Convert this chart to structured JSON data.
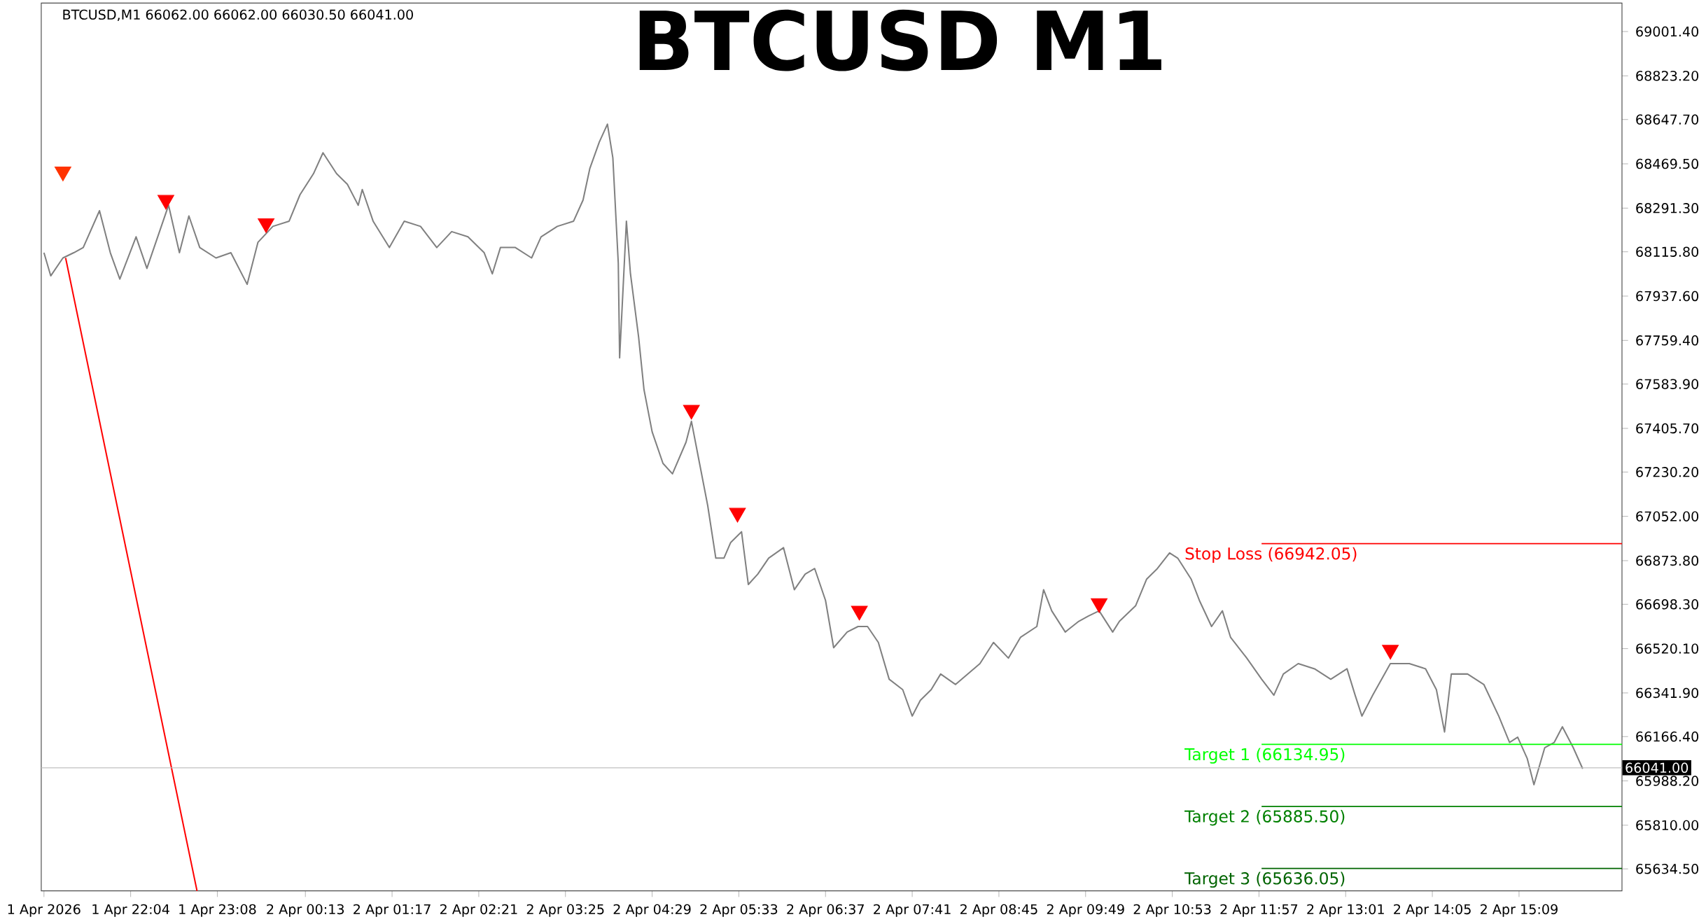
{
  "chart_data": {
    "type": "line",
    "title": "BTCUSD M1",
    "annotations": [
      "BTCUSD,M1  66062.00 66062.00 66030.50 66041.00"
    ],
    "xlim": [
      "2026-04-01T20:58",
      "2026-04-02T16:25"
    ],
    "ylim": [
      65546,
      69116
    ],
    "xticks": [
      {
        "value": "2026-04-01T21:00",
        "label": "1 Apr 2026"
      },
      {
        "value": "2026-04-01T22:04",
        "label": "1 Apr 22:04"
      },
      {
        "value": "2026-04-01T23:08",
        "label": "1 Apr 23:08"
      },
      {
        "value": "2026-04-02T00:13",
        "label": "2 Apr 00:13"
      },
      {
        "value": "2026-04-02T01:17",
        "label": "2 Apr 01:17"
      },
      {
        "value": "2026-04-02T02:21",
        "label": "2 Apr 02:21"
      },
      {
        "value": "2026-04-02T03:25",
        "label": "2 Apr 03:25"
      },
      {
        "value": "2026-04-02T04:29",
        "label": "2 Apr 04:29"
      },
      {
        "value": "2026-04-02T05:33",
        "label": "2 Apr 05:33"
      },
      {
        "value": "2026-04-02T06:37",
        "label": "2 Apr 06:37"
      },
      {
        "value": "2026-04-02T07:41",
        "label": "2 Apr 07:41"
      },
      {
        "value": "2026-04-02T08:45",
        "label": "2 Apr 08:45"
      },
      {
        "value": "2026-04-02T09:49",
        "label": "2 Apr 09:49"
      },
      {
        "value": "2026-04-02T10:53",
        "label": "2 Apr 10:53"
      },
      {
        "value": "2026-04-02T11:57",
        "label": "2 Apr 11:57"
      },
      {
        "value": "2026-04-02T13:01",
        "label": "2 Apr 13:01"
      },
      {
        "value": "2026-04-02T14:05",
        "label": "2 Apr 14:05"
      },
      {
        "value": "2026-04-02T15:09",
        "label": "2 Apr 15:09"
      }
    ],
    "yticks": [
      {
        "value": 69001.4,
        "label": "69001.40"
      },
      {
        "value": 68823.2,
        "label": "68823.20"
      },
      {
        "value": 68647.7,
        "label": "68647.70"
      },
      {
        "value": 68469.5,
        "label": "68469.50"
      },
      {
        "value": 68291.3,
        "label": "68291.30"
      },
      {
        "value": 68115.8,
        "label": "68115.80"
      },
      {
        "value": 67937.6,
        "label": "67937.60"
      },
      {
        "value": 67759.4,
        "label": "67759.40"
      },
      {
        "value": 67583.9,
        "label": "67583.90"
      },
      {
        "value": 67405.7,
        "label": "67405.70"
      },
      {
        "value": 67230.2,
        "label": "67230.20"
      },
      {
        "value": 67052.0,
        "label": "67052.00"
      },
      {
        "value": 66873.8,
        "label": "66873.80"
      },
      {
        "value": 66698.3,
        "label": "66698.30"
      },
      {
        "value": 66520.1,
        "label": "66520.10"
      },
      {
        "value": 66341.9,
        "label": "66341.90"
      },
      {
        "value": 66166.4,
        "label": "66166.40"
      },
      {
        "value": 65988.2,
        "label": "65988.20"
      },
      {
        "value": 65810.0,
        "label": "65810.00"
      },
      {
        "value": 65634.5,
        "label": "65634.50"
      }
    ],
    "ref_lines": [
      {
        "axis": "y",
        "value": 66942.05,
        "label": "Stop Loss (66942.05)",
        "color": "#ff0000"
      },
      {
        "axis": "y",
        "value": 66134.95,
        "label": "Target 1 (66134.95)",
        "color": "#00ff00"
      },
      {
        "axis": "y",
        "value": 65885.5,
        "label": "Target 2 (65885.50)",
        "color": "#008000"
      },
      {
        "axis": "y",
        "value": 65636.05,
        "label": "Target 3 (65636.05)",
        "color": "#006400"
      },
      {
        "axis": "y",
        "value": 66041.0,
        "label": "66041.00",
        "color": "#c0c0c0"
      }
    ],
    "series": [
      {
        "color": "#808080",
        "marker": "none",
        "x": [
          "2026-04-01T21:00",
          "2026-04-01T21:05",
          "2026-04-01T21:14",
          "2026-04-01T21:22",
          "2026-04-01T21:29",
          "2026-04-01T21:41",
          "2026-04-01T21:49",
          "2026-04-01T21:56",
          "2026-04-01T22:08",
          "2026-04-01T22:16",
          "2026-04-01T22:24",
          "2026-04-01T22:32",
          "2026-04-01T22:40",
          "2026-04-01T22:47",
          "2026-04-01T22:55",
          "2026-04-01T23:07",
          "2026-04-01T23:18",
          "2026-04-01T23:30",
          "2026-04-01T23:38",
          "2026-04-01T23:49",
          "2026-04-02T00:01",
          "2026-04-02T00:09",
          "2026-04-02T00:19",
          "2026-04-02T00:26",
          "2026-04-02T00:36",
          "2026-04-02T00:44",
          "2026-04-02T00:52",
          "2026-04-02T00:55",
          "2026-04-02T01:03",
          "2026-04-02T01:15",
          "2026-04-02T01:26",
          "2026-04-02T01:38",
          "2026-04-02T01:50",
          "2026-04-02T02:01",
          "2026-04-02T02:13",
          "2026-04-02T02:25",
          "2026-04-02T02:31",
          "2026-04-02T02:37",
          "2026-04-02T02:48",
          "2026-04-02T03:00",
          "2026-04-02T03:07",
          "2026-04-02T03:19",
          "2026-04-02T03:31",
          "2026-04-02T03:38",
          "2026-04-02T03:43",
          "2026-04-02T03:50",
          "2026-04-02T03:56",
          "2026-04-02T04:00",
          "2026-04-02T04:04",
          "2026-04-02T04:05",
          "2026-04-02T04:10",
          "2026-04-02T04:13",
          "2026-04-02T04:19",
          "2026-04-02T04:23",
          "2026-04-02T04:29",
          "2026-04-02T04:37",
          "2026-04-02T04:44",
          "2026-04-02T04:54",
          "2026-04-02T04:58",
          "2026-04-02T05:04",
          "2026-04-02T05:10",
          "2026-04-02T05:16",
          "2026-04-02T05:22",
          "2026-04-02T05:27",
          "2026-04-02T05:35",
          "2026-04-02T05:40",
          "2026-04-02T05:47",
          "2026-04-02T05:55",
          "2026-04-02T06:06",
          "2026-04-02T06:14",
          "2026-04-02T06:22",
          "2026-04-02T06:29",
          "2026-04-02T06:37",
          "2026-04-02T06:43",
          "2026-04-02T06:53",
          "2026-04-02T07:01",
          "2026-04-02T07:08",
          "2026-04-02T07:16",
          "2026-04-02T07:24",
          "2026-04-02T07:34",
          "2026-04-02T07:41",
          "2026-04-02T07:47",
          "2026-04-02T07:55",
          "2026-04-02T08:02",
          "2026-04-02T08:13",
          "2026-04-02T08:22",
          "2026-04-02T08:31",
          "2026-04-02T08:41",
          "2026-04-02T08:52",
          "2026-04-02T09:01",
          "2026-04-02T09:13",
          "2026-04-02T09:18",
          "2026-04-02T09:24",
          "2026-04-02T09:34",
          "2026-04-02T09:44",
          "2026-04-02T09:51",
          "2026-04-02T09:59",
          "2026-04-02T10:09",
          "2026-04-02T10:14",
          "2026-04-02T10:26",
          "2026-04-02T10:34",
          "2026-04-02T10:42",
          "2026-04-02T10:51",
          "2026-04-02T10:57",
          "2026-04-02T11:07",
          "2026-04-02T11:13",
          "2026-04-02T11:22",
          "2026-04-02T11:30",
          "2026-04-02T11:36",
          "2026-04-02T11:48",
          "2026-04-02T11:59",
          "2026-04-02T12:08",
          "2026-04-02T12:15",
          "2026-04-02T12:26",
          "2026-04-02T12:38",
          "2026-04-02T12:50",
          "2026-04-02T13:02",
          "2026-04-02T13:08",
          "2026-04-02T13:13",
          "2026-04-02T13:21",
          "2026-04-02T13:34",
          "2026-04-02T13:48",
          "2026-04-02T14:00",
          "2026-04-02T14:08",
          "2026-04-02T14:14",
          "2026-04-02T14:19",
          "2026-04-02T14:31",
          "2026-04-02T14:43",
          "2026-04-02T14:54",
          "2026-04-02T15:02",
          "2026-04-02T15:08",
          "2026-04-02T15:15",
          "2026-04-02T15:20",
          "2026-04-02T15:28",
          "2026-04-02T15:35",
          "2026-04-02T15:41",
          "2026-04-02T15:49",
          "2026-04-02T15:56"
        ],
        "values": [
          68112,
          68019,
          68091,
          68112,
          68133,
          68281,
          68112,
          68006,
          68176,
          68049,
          68176,
          68303,
          68112,
          68260,
          68133,
          68091,
          68112,
          67985,
          68154,
          68218,
          68239,
          68345,
          68430,
          68514,
          68430,
          68387,
          68303,
          68366,
          68239,
          68133,
          68239,
          68218,
          68133,
          68197,
          68176,
          68112,
          68027,
          68133,
          68133,
          68091,
          68176,
          68218,
          68239,
          68324,
          68451,
          68557,
          68629,
          68493,
          68070,
          67689,
          68239,
          68027,
          67773,
          67561,
          67392,
          67265,
          67223,
          67350,
          67434,
          67265,
          67096,
          66884,
          66884,
          66947,
          66990,
          66778,
          66820,
          66884,
          66926,
          66757,
          66820,
          66842,
          66714,
          66524,
          66587,
          66609,
          66609,
          66545,
          66397,
          66355,
          66249,
          66312,
          66355,
          66418,
          66376,
          66418,
          66460,
          66545,
          66482,
          66566,
          66609,
          66757,
          66672,
          66587,
          66630,
          66651,
          66672,
          66587,
          66630,
          66693,
          66799,
          66842,
          66905,
          66884,
          66799,
          66714,
          66609,
          66672,
          66566,
          66482,
          66397,
          66333,
          66418,
          66460,
          66439,
          66397,
          66439,
          66333,
          66249,
          66333,
          66460,
          66460,
          66439,
          66355,
          66185,
          66418,
          66418,
          66376,
          66249,
          66143,
          66164,
          66079,
          65973,
          66122,
          66143,
          66206,
          66122,
          66037
        ]
      },
      {
        "color": "#ff0000",
        "marker": "none",
        "x": [
          "2026-04-01T21:16",
          "2026-04-01T22:53"
        ],
        "values": [
          68091,
          65546
        ]
      },
      {
        "type": "scatter",
        "color": "#ff0000",
        "marker": "triangle",
        "x": [
          "2026-04-01T22:30",
          "2026-04-01T23:44",
          "2026-04-02T04:58",
          "2026-04-02T05:32",
          "2026-04-02T07:02",
          "2026-04-02T09:59",
          "2026-04-02T13:34"
        ],
        "values": [
          68324,
          68230,
          67480,
          67066,
          66672,
          66702,
          66515
        ]
      },
      {
        "type": "scatter",
        "color": "#ff3300",
        "marker": "triangle",
        "x": [
          "2026-04-01T21:14"
        ],
        "values": [
          68438
        ]
      }
    ]
  }
}
